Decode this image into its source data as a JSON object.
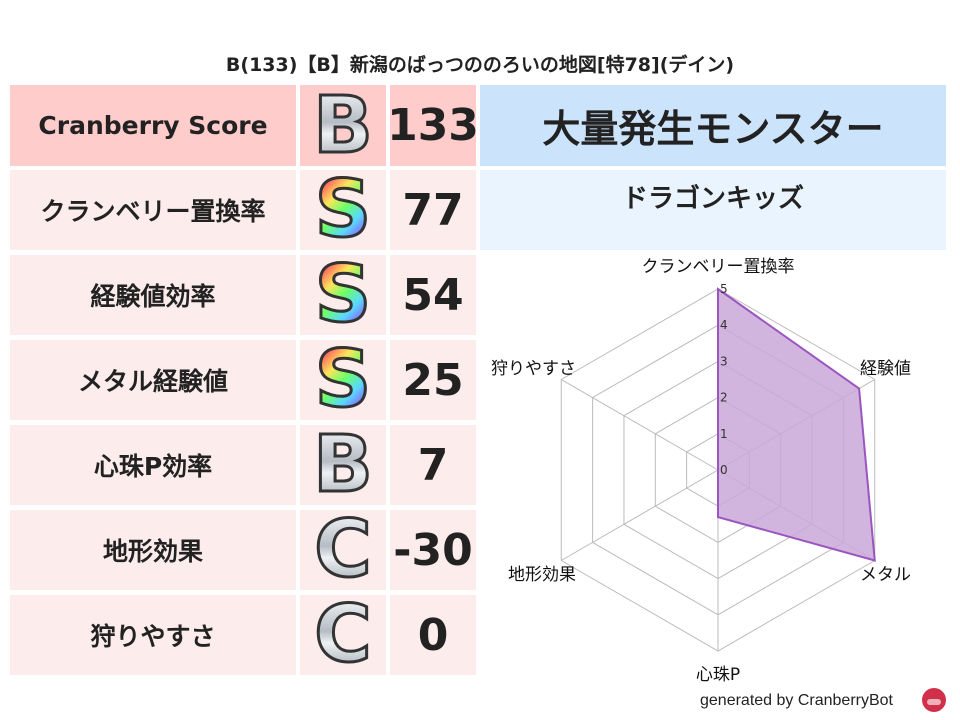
{
  "title": "B(133)【B】新潟のばっつののろいの地図[特78](デイン)",
  "score": {
    "label": "Cranberry Score",
    "grade": "B",
    "value": "133"
  },
  "rows": [
    {
      "label": "クランベリー置換率",
      "grade": "S",
      "value": "77"
    },
    {
      "label": "経験値効率",
      "grade": "S",
      "value": "54"
    },
    {
      "label": "メタル経験値",
      "grade": "S",
      "value": "25"
    },
    {
      "label": "心珠P効率",
      "grade": "B",
      "value": "7"
    },
    {
      "label": "地形効果",
      "grade": "C",
      "value": "-30"
    },
    {
      "label": "狩りやすさ",
      "grade": "C",
      "value": "0"
    }
  ],
  "monster": {
    "header": "大量発生モンスター",
    "name": "ドラゴンキッズ"
  },
  "footer": "generated by CranberryBot",
  "colors": {
    "header_bg": "#ffcccc",
    "row_bg": "#fdecec",
    "right_header_bg": "#cce4fb",
    "right_row_bg": "#eaf4fe",
    "fill": "#c9a8d8",
    "stroke": "#9a55c0"
  },
  "chart_data": {
    "type": "radar",
    "categories": [
      "クランベリー置換率",
      "経験値",
      "メタル",
      "心珠P",
      "地形効果",
      "狩りやすさ"
    ],
    "values": [
      5,
      4.5,
      5,
      1.3,
      0,
      0
    ],
    "range": [
      0,
      5
    ],
    "ticks": [
      "0",
      "1",
      "2",
      "3",
      "4",
      "5"
    ]
  }
}
